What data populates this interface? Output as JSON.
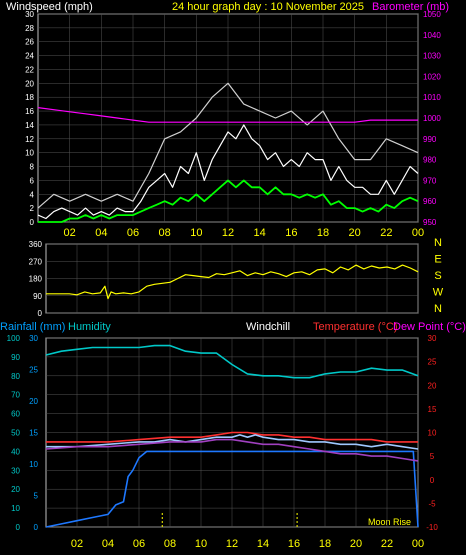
{
  "colors": {
    "frame": "#c0c0c0",
    "grid": "#555555",
    "white_text": "#ffffff",
    "yellow": "#ffff00",
    "magenta": "#ff00ff",
    "green": "#00ff00",
    "cyan": "#00c8c8",
    "blue": "#1e78ff",
    "red": "#ff3030",
    "violet": "#a040c0",
    "light_blue": "#a0c8ff",
    "rain_axis": "#00a0ff",
    "temp_axis": "#ff2020"
  },
  "chart_data": [
    {
      "type": "line",
      "title": "24 hour graph day : 10 November 2025",
      "left_label": "Windspeed (mph)",
      "right_label": "Barometer (mb)",
      "ylim": [
        0,
        30
      ],
      "y2lim": [
        950,
        1050
      ],
      "yticks": [
        0,
        2,
        4,
        6,
        8,
        10,
        12,
        14,
        16,
        18,
        20,
        22,
        24,
        26,
        28,
        30
      ],
      "y2ticks": [
        950,
        960,
        970,
        980,
        990,
        1000,
        1010,
        1020,
        1030,
        1040,
        1050
      ],
      "xlim": [
        0,
        24
      ],
      "xticks": [
        "02",
        "04",
        "06",
        "08",
        "10",
        "12",
        "14",
        "16",
        "18",
        "20",
        "22",
        "00"
      ],
      "series": [
        {
          "name": "Windspeed (mph)",
          "axis": "left",
          "color_key": "white_text",
          "x": [
            0,
            0.5,
            1,
            1.5,
            2,
            2.5,
            3,
            3.5,
            4,
            4.5,
            5,
            5.5,
            6,
            6.5,
            7,
            7.5,
            8,
            8.5,
            9,
            9.5,
            10,
            10.5,
            11,
            11.5,
            12,
            12.5,
            13,
            13.5,
            14,
            14.5,
            15,
            15.5,
            16,
            16.5,
            17,
            17.5,
            18,
            18.5,
            19,
            19.5,
            20,
            20.5,
            21,
            21.5,
            22,
            22.5,
            23,
            23.5,
            24
          ],
          "y": [
            1,
            0.5,
            1.5,
            2,
            1.5,
            1,
            2,
            1,
            1.5,
            1,
            2,
            1.5,
            1.5,
            3,
            5,
            6,
            7,
            5,
            8,
            7,
            10,
            6,
            9,
            11,
            13,
            12,
            14,
            12,
            11,
            9,
            10,
            8,
            9,
            8,
            10,
            9,
            9,
            6,
            8,
            6,
            5,
            5,
            4,
            4,
            6,
            4,
            6,
            8,
            7
          ]
        },
        {
          "name": "Wind gust (mph)",
          "axis": "left",
          "color_key": "white_text",
          "x": [
            0,
            1,
            2,
            3,
            4,
            5,
            6,
            7,
            8,
            9,
            10,
            11,
            12,
            13,
            14,
            15,
            16,
            17,
            18,
            19,
            20,
            21,
            22,
            23,
            24
          ],
          "y": [
            2,
            4,
            3,
            4,
            3,
            4,
            3,
            7,
            12,
            13,
            15,
            18,
            20,
            17,
            16,
            15,
            16,
            14,
            16,
            12,
            9,
            9,
            12,
            11,
            10
          ]
        },
        {
          "name": "Average wind (mph)",
          "axis": "left",
          "color_key": "green",
          "x": [
            0,
            0.5,
            1,
            1.5,
            2,
            2.5,
            3,
            3.5,
            4,
            4.5,
            5,
            5.5,
            6,
            6.5,
            7,
            7.5,
            8,
            8.5,
            9,
            9.5,
            10,
            10.5,
            11,
            11.5,
            12,
            12.5,
            13,
            13.5,
            14,
            14.5,
            15,
            15.5,
            16,
            16.5,
            17,
            17.5,
            18,
            18.5,
            19,
            19.5,
            20,
            20.5,
            21,
            21.5,
            22,
            22.5,
            23,
            23.5,
            24
          ],
          "y": [
            0,
            0,
            0,
            0,
            0.5,
            0.5,
            1,
            0.5,
            1,
            0.5,
            1,
            1,
            1,
            1.5,
            2,
            2.5,
            3,
            2.5,
            3.5,
            3,
            4,
            3,
            4,
            5,
            6,
            5,
            6,
            5,
            5,
            4,
            5,
            4,
            4,
            3.5,
            4,
            3.5,
            4,
            2.5,
            3,
            2,
            2,
            1.5,
            2,
            1.5,
            2.5,
            2,
            3,
            3.5,
            3
          ]
        },
        {
          "name": "Barometer (mb)",
          "axis": "right",
          "color_key": "magenta",
          "x": [
            0,
            1,
            2,
            3,
            4,
            5,
            6,
            7,
            8,
            9,
            10,
            11,
            12,
            13,
            14,
            15,
            16,
            17,
            18,
            19,
            20,
            21,
            22,
            23,
            24
          ],
          "y": [
            1005,
            1004,
            1003,
            1002,
            1001,
            1000,
            999,
            998,
            998,
            998,
            998,
            998,
            998,
            998,
            998,
            998,
            998,
            998,
            998,
            998,
            998,
            999,
            999,
            999,
            999
          ]
        }
      ]
    },
    {
      "type": "line",
      "ylim": [
        0,
        360
      ],
      "yticks": [
        0,
        90,
        180,
        270,
        360
      ],
      "compass": [
        "N",
        "W",
        "S",
        "E",
        "N"
      ],
      "xlim": [
        0,
        24
      ],
      "series": [
        {
          "name": "Wind direction",
          "color_key": "yellow",
          "x": [
            0,
            0.5,
            1,
            1.5,
            2,
            2.5,
            3,
            3.5,
            3.8,
            4,
            4.2,
            4.5,
            5,
            5.5,
            6,
            6.5,
            7,
            7.5,
            8,
            8.5,
            9,
            9.5,
            10,
            10.5,
            11,
            11.5,
            12,
            12.5,
            13,
            13.5,
            14,
            14.5,
            15,
            15.5,
            16,
            16.5,
            17,
            17.5,
            18,
            18.5,
            19,
            19.5,
            20,
            20.5,
            21,
            21.5,
            22,
            22.5,
            23,
            23.5,
            24
          ],
          "y": [
            100,
            100,
            100,
            100,
            95,
            110,
            100,
            105,
            140,
            75,
            110,
            100,
            105,
            100,
            110,
            140,
            150,
            155,
            160,
            180,
            200,
            195,
            190,
            185,
            205,
            200,
            210,
            220,
            195,
            210,
            200,
            215,
            205,
            190,
            210,
            215,
            200,
            225,
            230,
            210,
            240,
            225,
            250,
            230,
            245,
            235,
            240,
            230,
            250,
            235,
            215
          ]
        }
      ]
    },
    {
      "type": "line",
      "left_label": "Rainfall (mm)",
      "left2_label": "Humidity",
      "windchill_label": "Windchill",
      "temp_label": "Temperature (°C)",
      "dew_label": "Dew Point (°C)",
      "annotation": "Moon Rise",
      "ylim": [
        0,
        100
      ],
      "yticks": [
        0,
        10,
        20,
        30,
        40,
        50,
        60,
        70,
        80,
        90,
        100
      ],
      "rain_ticks": [
        0,
        5,
        10,
        15,
        20,
        25,
        30
      ],
      "y2lim": [
        -10,
        30
      ],
      "y2ticks": [
        -10,
        -5,
        0,
        5,
        10,
        15,
        20,
        25,
        30
      ],
      "xlim": [
        0,
        24
      ],
      "xticks": [
        "02",
        "04",
        "06",
        "08",
        "10",
        "12",
        "14",
        "16",
        "18",
        "20",
        "22",
        "00"
      ],
      "markers_x": [
        7.5,
        16.2
      ],
      "series": [
        {
          "name": "Humidity",
          "axis": "left",
          "color_key": "cyan",
          "x": [
            0,
            1,
            2,
            3,
            4,
            5,
            6,
            7,
            8,
            9,
            10,
            11,
            12,
            13,
            14,
            15,
            16,
            17,
            18,
            19,
            20,
            21,
            22,
            23,
            24
          ],
          "y": [
            91,
            93,
            94,
            95,
            95,
            95,
            95,
            96,
            96,
            93,
            92,
            92,
            86,
            81,
            80,
            80,
            79,
            79,
            81,
            82,
            82,
            84,
            83,
            83,
            80
          ]
        },
        {
          "name": "Rainfall (mm)",
          "axis": "rain",
          "color_key": "blue",
          "x": [
            0,
            1,
            2,
            3,
            4,
            4.5,
            5,
            5.3,
            5.6,
            6,
            6.5,
            7,
            8,
            10,
            12,
            14,
            16,
            18,
            20,
            22,
            23.7,
            24
          ],
          "y": [
            0,
            0.5,
            1,
            1.5,
            2,
            3.5,
            4,
            8,
            9,
            11,
            12,
            12,
            12,
            12,
            12,
            12,
            12,
            12,
            12,
            12,
            12,
            0
          ]
        },
        {
          "name": "Temperature (°C)",
          "axis": "right",
          "color_key": "red",
          "x": [
            0,
            2,
            4,
            6,
            8,
            10,
            11,
            12,
            13,
            14,
            15,
            16,
            17,
            18,
            19,
            20,
            21,
            22,
            23,
            24
          ],
          "y": [
            8,
            8,
            8,
            8.5,
            9,
            9,
            9.5,
            10,
            10,
            9.5,
            9.5,
            9,
            9,
            8.5,
            8.5,
            8.5,
            8.5,
            8,
            8,
            8
          ]
        },
        {
          "name": "Windchill",
          "axis": "right",
          "color_key": "light_blue",
          "x": [
            0,
            2,
            4,
            6,
            7,
            8,
            9,
            10,
            11,
            12,
            12.5,
            13,
            13.5,
            14,
            15,
            16,
            17,
            18,
            19,
            20,
            21,
            22,
            23,
            24
          ],
          "y": [
            7,
            7,
            7.5,
            8,
            8,
            8.5,
            8,
            8.5,
            9,
            9,
            9.5,
            9,
            9.5,
            9,
            8.5,
            8.5,
            8,
            8,
            7.5,
            7.5,
            7,
            7.5,
            7,
            6.5
          ]
        },
        {
          "name": "Dew Point (°C)",
          "axis": "right",
          "color_key": "violet",
          "x": [
            0,
            2,
            4,
            6,
            8,
            10,
            11,
            12,
            13,
            14,
            15,
            16,
            17,
            18,
            19,
            20,
            21,
            22,
            23,
            24
          ],
          "y": [
            6.5,
            7,
            7,
            7.5,
            8,
            8,
            8.5,
            8.5,
            8,
            7.5,
            7.5,
            7,
            6.5,
            6,
            5.5,
            5.5,
            5,
            5,
            4.5,
            4
          ]
        }
      ]
    }
  ]
}
